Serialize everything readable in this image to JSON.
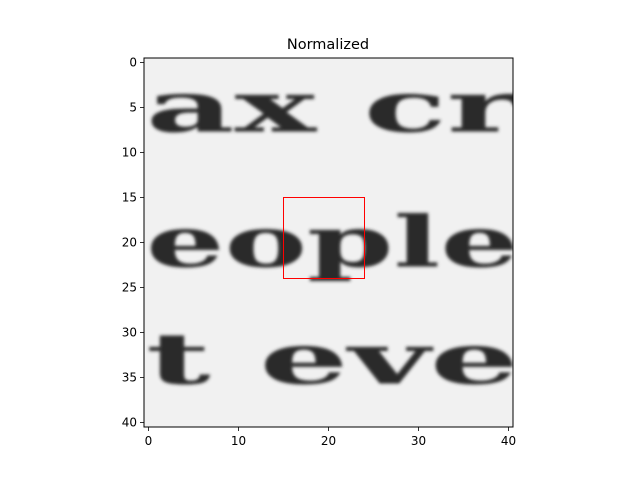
{
  "chart_data": {
    "type": "heatmap",
    "title": "Normalized",
    "xlabel": "",
    "ylabel": "",
    "xlim": [
      -0.5,
      40.5
    ],
    "ylim": [
      40.5,
      -0.5
    ],
    "x_ticks": [
      0,
      10,
      20,
      30,
      40
    ],
    "y_ticks": [
      0,
      5,
      10,
      15,
      20,
      25,
      30,
      35,
      40
    ],
    "colormap": "grayscale",
    "grid": false,
    "image_text_lines": [
      {
        "text": "ax cr",
        "row_center": 5
      },
      {
        "text": "eople",
        "row_center": 20
      },
      {
        "text": "t eve",
        "row_center": 33
      }
    ],
    "highlight_box": {
      "x0": 15,
      "y0": 15,
      "x1": 24,
      "y1": 24,
      "color": "#ff0000"
    }
  }
}
